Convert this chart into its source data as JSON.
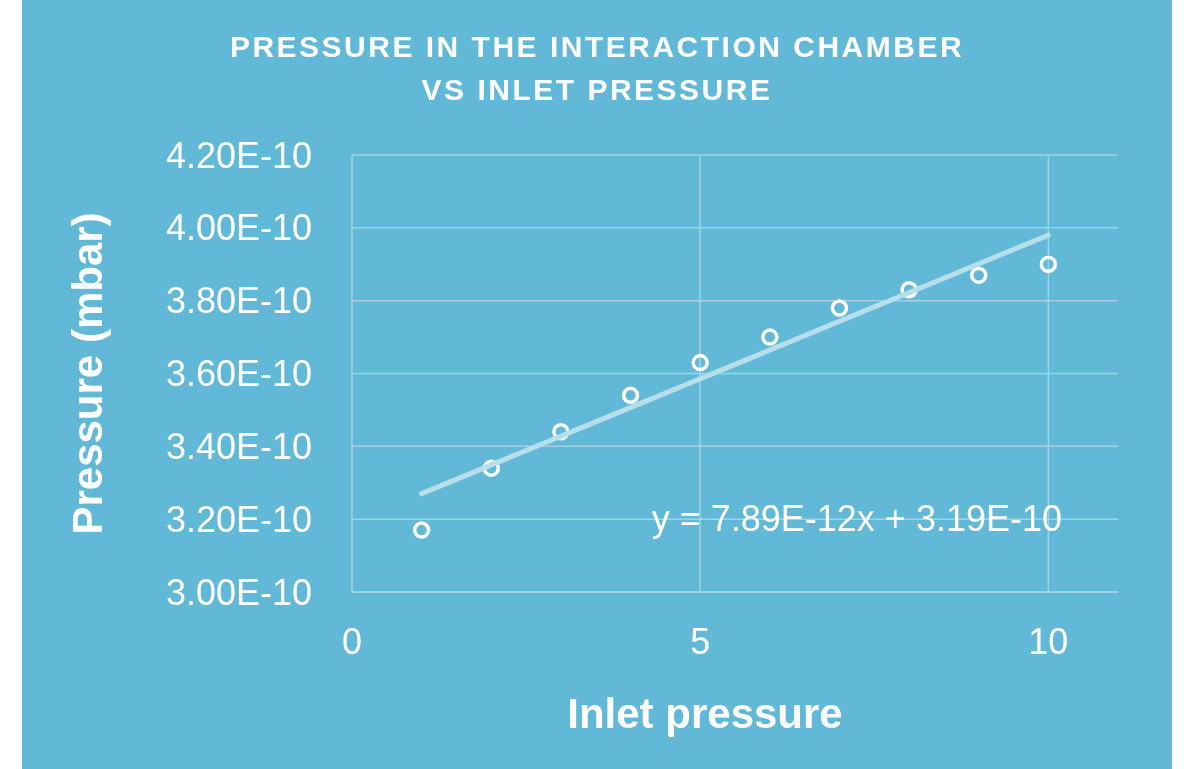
{
  "chart_data": {
    "type": "scatter",
    "title": "PRESSURE IN THE INTERACTION CHAMBER\nVS INLET PRESSURE",
    "xlabel": "Inlet pressure",
    "ylabel": "Pressure (mbar)",
    "x": [
      1,
      2,
      3,
      4,
      5,
      6,
      7,
      8,
      9,
      10
    ],
    "series": [
      {
        "color": "#ffffff",
        "marker": "circle",
        "values": [
          3.17e-10,
          3.34e-10,
          3.44e-10,
          3.54e-10,
          3.63e-10,
          3.7e-10,
          3.78e-10,
          3.83e-10,
          3.87e-10,
          3.9e-10
        ]
      },
      {
        "type": "line",
        "color": "#b5dfec",
        "x": [
          1,
          10
        ],
        "values": [
          3.27e-10,
          3.98e-10
        ],
        "marker": "none",
        "line_style": "solid"
      }
    ],
    "xlim": [
      0,
      11
    ],
    "xticks": [
      0,
      5,
      10
    ],
    "ylim": [
      3e-10,
      4.2e-10
    ],
    "yticks": [
      {
        "value": 3e-10,
        "label": "3.00E-10"
      },
      {
        "value": 3.2e-10,
        "label": "3.20E-10"
      },
      {
        "value": 3.4e-10,
        "label": "3.40E-10"
      },
      {
        "value": 3.6e-10,
        "label": "3.60E-10"
      },
      {
        "value": 3.8e-10,
        "label": "3.80E-10"
      },
      {
        "value": 4e-10,
        "label": "4.00E-10"
      },
      {
        "value": 4.2e-10,
        "label": "4.20E-10"
      }
    ],
    "annotations": [
      "y = 7.89E-12x + 3.19E-10"
    ],
    "grid": true
  }
}
